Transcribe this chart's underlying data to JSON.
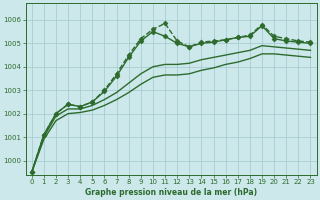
{
  "title": "Graphe pression niveau de la mer (hPa)",
  "background_color": "#cde8eb",
  "grid_color": "#a0c8cc",
  "line_color": "#2d6b2d",
  "xlim": [
    -0.5,
    23.5
  ],
  "ylim": [
    999.4,
    1006.7
  ],
  "yticks": [
    1000,
    1001,
    1002,
    1003,
    1004,
    1005,
    1006
  ],
  "xticks": [
    0,
    1,
    2,
    3,
    4,
    5,
    6,
    7,
    8,
    9,
    10,
    11,
    12,
    13,
    14,
    15,
    16,
    17,
    18,
    19,
    20,
    21,
    22,
    23
  ],
  "series": [
    {
      "x": [
        0,
        1,
        2,
        3,
        4,
        5,
        6,
        7,
        8,
        9,
        10,
        11,
        12,
        13,
        14,
        15,
        16,
        17,
        18,
        19,
        20,
        21,
        22,
        23
      ],
      "y": [
        999.5,
        1001.1,
        1002.0,
        1002.4,
        1002.3,
        1002.5,
        1003.0,
        1003.7,
        1004.5,
        1005.2,
        1005.6,
        1005.85,
        1005.1,
        1004.85,
        1005.05,
        1005.1,
        1005.15,
        1005.25,
        1005.35,
        1005.8,
        1005.3,
        1005.2,
        1005.1,
        1005.05
      ],
      "marker": "D",
      "markersize": 2.5,
      "linestyle": "--",
      "linewidth": 1.0
    },
    {
      "x": [
        0,
        1,
        2,
        3,
        4,
        5,
        6,
        7,
        8,
        9,
        10,
        11,
        12,
        13,
        14,
        15,
        16,
        17,
        18,
        19,
        20,
        21,
        22,
        23
      ],
      "y": [
        999.5,
        1001.1,
        1002.0,
        1002.4,
        1002.3,
        1002.5,
        1002.95,
        1003.6,
        1004.4,
        1005.1,
        1005.5,
        1005.3,
        1005.0,
        1004.85,
        1005.0,
        1005.05,
        1005.15,
        1005.25,
        1005.3,
        1005.75,
        1005.2,
        1005.1,
        1005.05,
        1005.0
      ],
      "marker": "D",
      "markersize": 2.5,
      "linestyle": "-",
      "linewidth": 1.0
    },
    {
      "x": [
        0,
        1,
        2,
        3,
        4,
        5,
        6,
        7,
        8,
        9,
        10,
        11,
        12,
        13,
        14,
        15,
        16,
        17,
        18,
        19,
        20,
        21,
        22,
        23
      ],
      "y": [
        999.5,
        1001.0,
        1001.9,
        1002.2,
        1002.2,
        1002.35,
        1002.6,
        1002.9,
        1003.3,
        1003.7,
        1004.0,
        1004.1,
        1004.1,
        1004.15,
        1004.3,
        1004.4,
        1004.5,
        1004.6,
        1004.7,
        1004.9,
        1004.85,
        1004.8,
        1004.75,
        1004.7
      ],
      "marker": null,
      "markersize": null,
      "linestyle": "-",
      "linewidth": 1.0
    },
    {
      "x": [
        0,
        1,
        2,
        3,
        4,
        5,
        6,
        7,
        8,
        9,
        10,
        11,
        12,
        13,
        14,
        15,
        16,
        17,
        18,
        19,
        20,
        21,
        22,
        23
      ],
      "y": [
        999.5,
        1000.9,
        1001.7,
        1002.0,
        1002.05,
        1002.15,
        1002.35,
        1002.6,
        1002.9,
        1003.25,
        1003.55,
        1003.65,
        1003.65,
        1003.7,
        1003.85,
        1003.95,
        1004.1,
        1004.2,
        1004.35,
        1004.55,
        1004.55,
        1004.5,
        1004.45,
        1004.4
      ],
      "marker": null,
      "markersize": null,
      "linestyle": "-",
      "linewidth": 1.0
    }
  ]
}
